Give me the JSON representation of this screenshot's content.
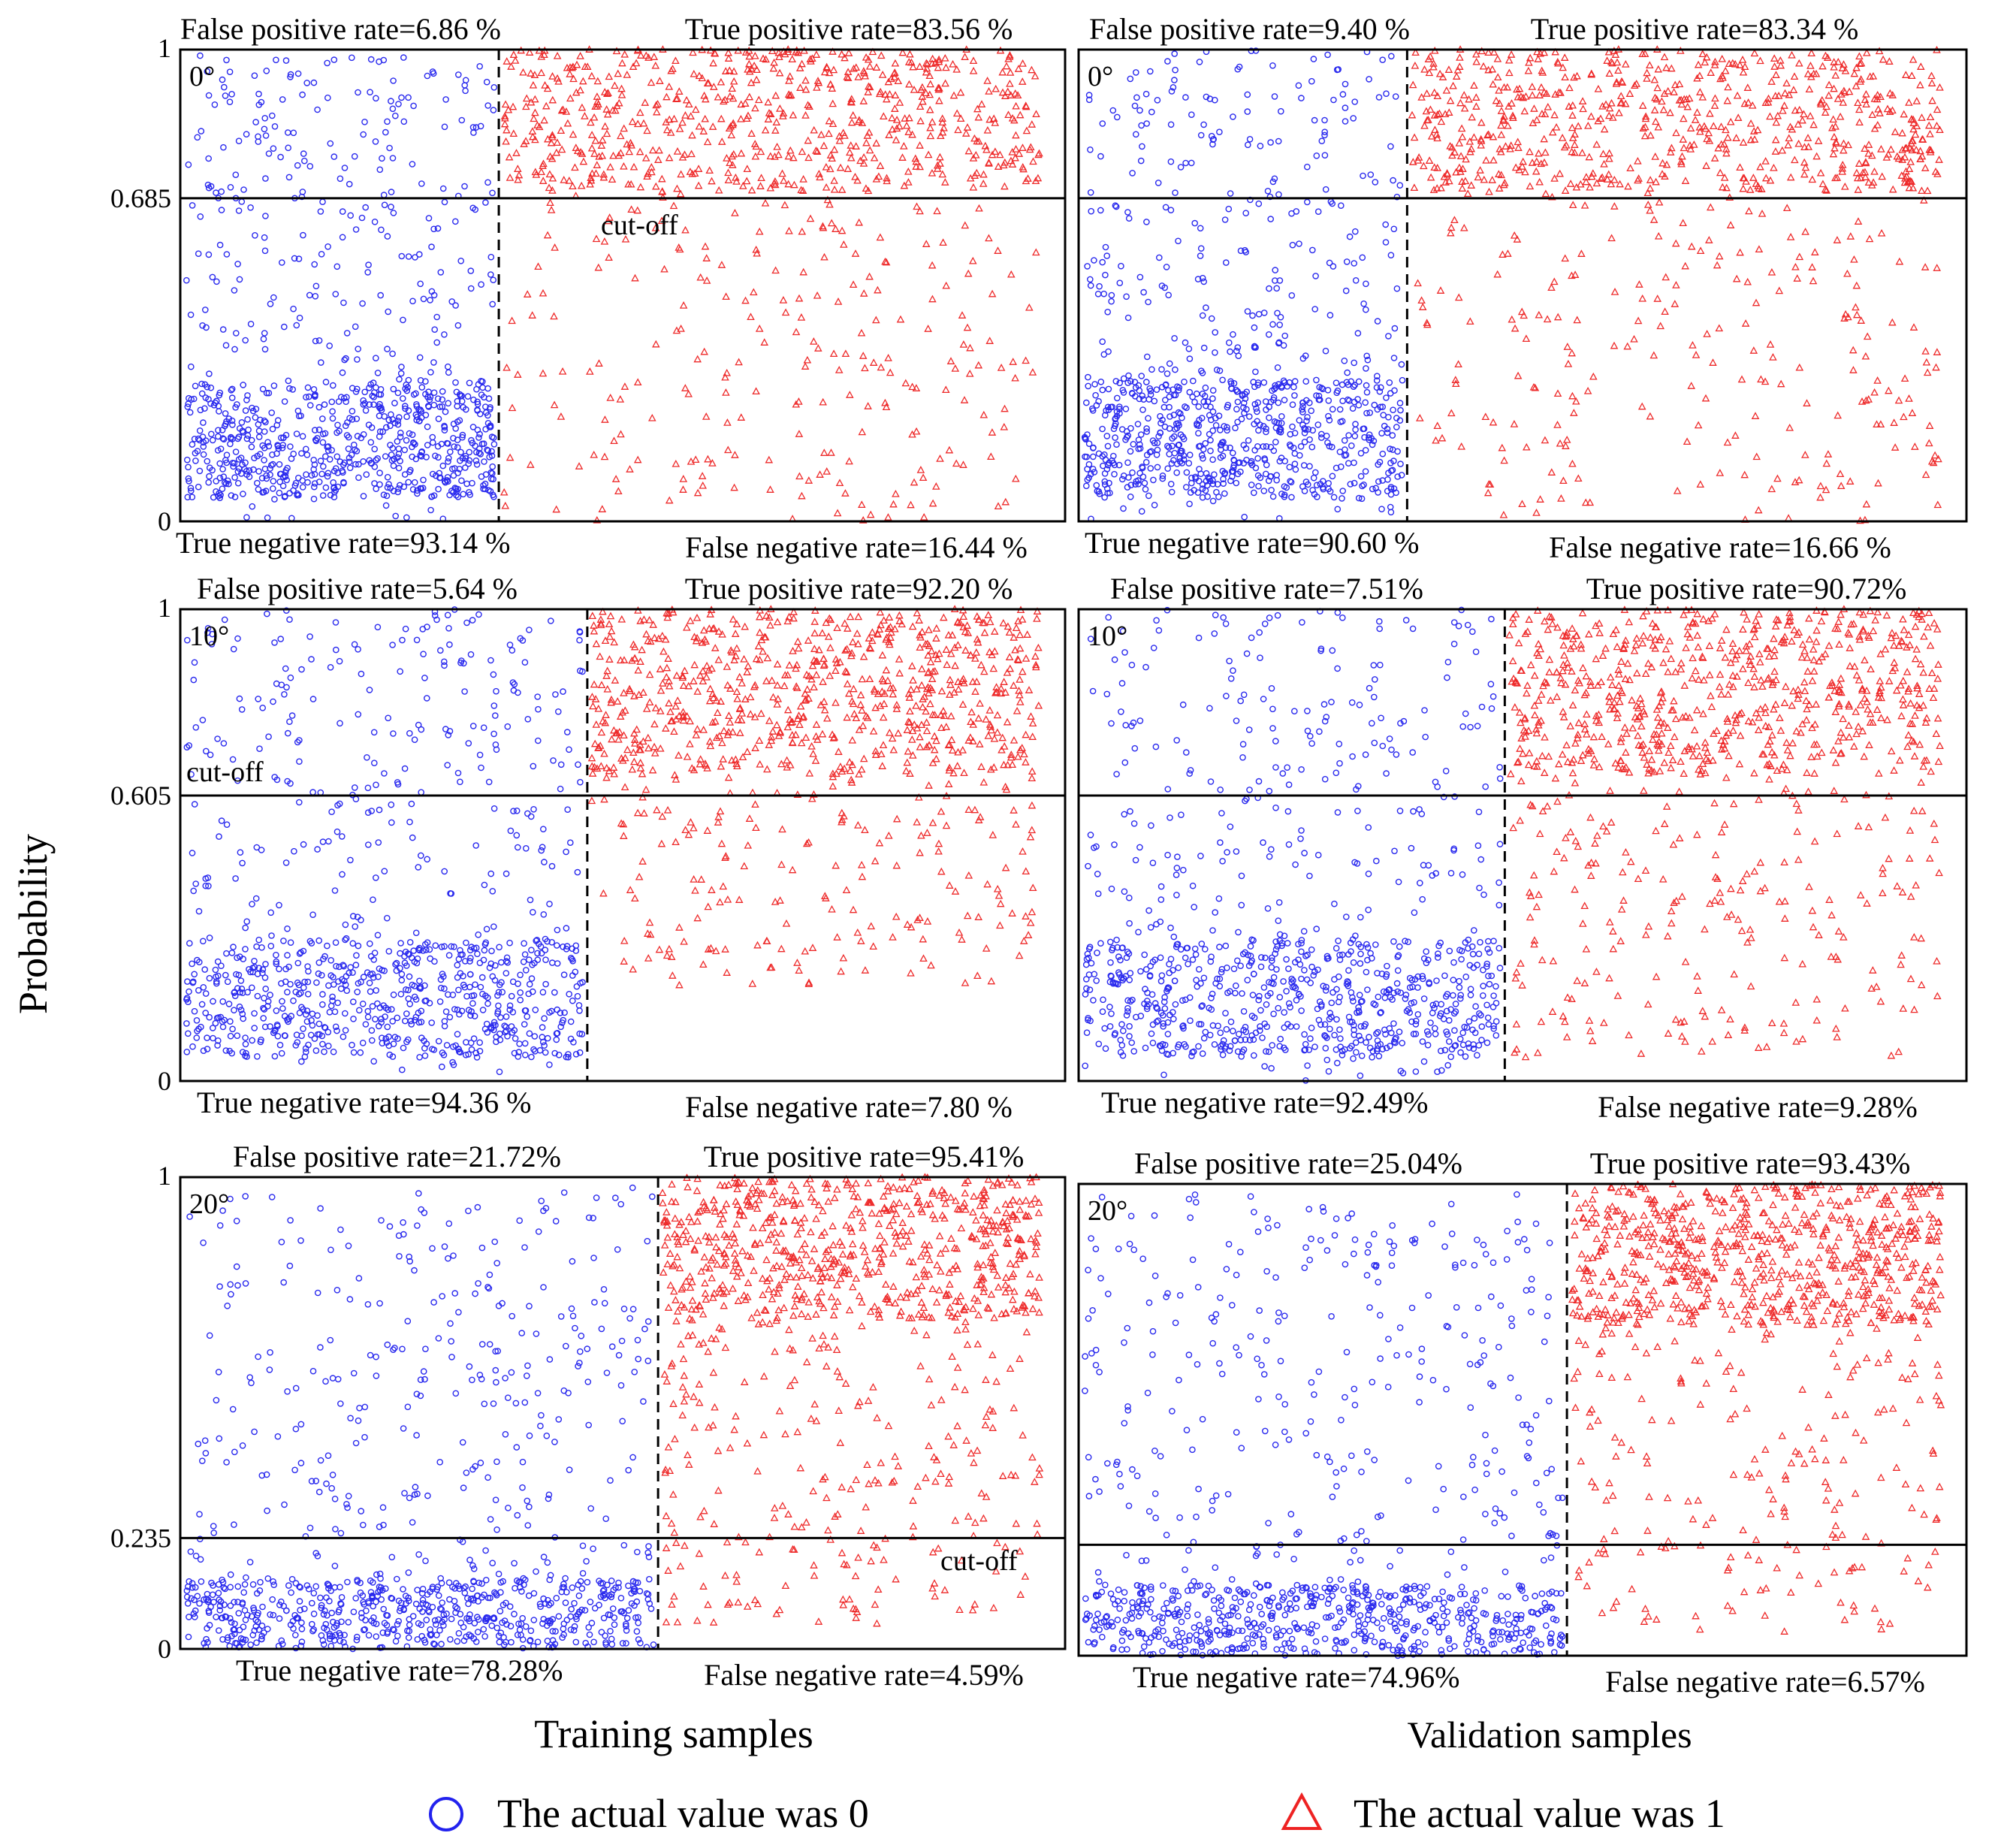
{
  "figure": {
    "ylabel": "Probability",
    "xlabel_training": "Training samples",
    "xlabel_validation": "Validation samples",
    "legend": [
      {
        "marker": "circle",
        "color": "#2222ee",
        "label": "The actual value was 0"
      },
      {
        "marker": "triangle",
        "color": "#ee2222",
        "label": "The actual value was 1"
      }
    ],
    "cutoff_label": "cut-off",
    "y_tick_min": "0",
    "y_tick_max": "1"
  },
  "chart_data": [
    {
      "type": "scatter",
      "angle": "0°",
      "set": "training",
      "cutoff": 0.685,
      "cutoff_tick": "0.685",
      "fpr": "False positive rate=6.86 %",
      "tpr": "True positive rate=83.56 %",
      "tnr": "True negative rate=93.14 %",
      "fnr": "False negative rate=16.44 %",
      "split_fraction": 0.36,
      "ylim": [
        0,
        1
      ],
      "class0": {
        "min": 0.0,
        "max": 1.0,
        "dense_low": 0.05,
        "dense_high": 0.3
      },
      "class1": {
        "min": 0.0,
        "max": 1.0,
        "dense_low": 0.7,
        "dense_high": 1.0
      }
    },
    {
      "type": "scatter",
      "angle": "0°",
      "set": "validation",
      "cutoff": 0.685,
      "cutoff_tick": "",
      "fpr": "False positive rate=9.40 %",
      "tpr": "True positive rate=83.34 %",
      "tnr": "True negative rate=90.60 %",
      "fnr": "False negative rate=16.66 %",
      "split_fraction": 0.37,
      "ylim": [
        0,
        1
      ],
      "class0": {
        "min": 0.0,
        "max": 1.0,
        "dense_low": 0.05,
        "dense_high": 0.3
      },
      "class1": {
        "min": 0.0,
        "max": 1.0,
        "dense_low": 0.7,
        "dense_high": 1.0
      }
    },
    {
      "type": "scatter",
      "angle": "10°",
      "set": "training",
      "cutoff": 0.605,
      "cutoff_tick": "0.605",
      "fpr": "False positive rate=5.64 %",
      "tpr": "True positive rate=92.20 %",
      "tnr": "True negative rate=94.36 %",
      "fnr": "False negative rate=7.80 %",
      "split_fraction": 0.46,
      "ylim": [
        0,
        1
      ],
      "class0": {
        "min": 0.0,
        "max": 1.0,
        "dense_low": 0.05,
        "dense_high": 0.3
      },
      "class1": {
        "min": 0.2,
        "max": 1.0,
        "dense_low": 0.65,
        "dense_high": 1.0
      }
    },
    {
      "type": "scatter",
      "angle": "10°",
      "set": "validation",
      "cutoff": 0.605,
      "cutoff_tick": "",
      "fpr": "False positive rate=7.51%",
      "tpr": "True positive rate=90.72%",
      "tnr": "True negative rate=92.49%",
      "fnr": "False negative rate=9.28%",
      "split_fraction": 0.48,
      "ylim": [
        0,
        1
      ],
      "class0": {
        "min": 0.0,
        "max": 1.0,
        "dense_low": 0.05,
        "dense_high": 0.3
      },
      "class1": {
        "min": 0.05,
        "max": 1.0,
        "dense_low": 0.65,
        "dense_high": 1.0
      }
    },
    {
      "type": "scatter",
      "angle": "20°",
      "set": "training",
      "cutoff": 0.235,
      "cutoff_tick": "0.235",
      "fpr": "False positive rate=21.72%",
      "tpr": "True positive rate=95.41%",
      "tnr": "True negative rate=78.28%",
      "fnr": "False negative rate=4.59%",
      "split_fraction": 0.54,
      "ylim": [
        0,
        1
      ],
      "class0": {
        "min": 0.0,
        "max": 0.98,
        "dense_low": 0.0,
        "dense_high": 0.15
      },
      "class1": {
        "min": 0.05,
        "max": 1.0,
        "dense_low": 0.7,
        "dense_high": 1.0
      }
    },
    {
      "type": "scatter",
      "angle": "20°",
      "set": "validation",
      "cutoff": 0.235,
      "cutoff_tick": "",
      "fpr": "False positive rate=25.04%",
      "tpr": "True positive rate=93.43%",
      "tnr": "True negative rate=74.96%",
      "fnr": "False negative rate=6.57%",
      "split_fraction": 0.55,
      "ylim": [
        0,
        1
      ],
      "class0": {
        "min": 0.0,
        "max": 0.98,
        "dense_low": 0.0,
        "dense_high": 0.15
      },
      "class1": {
        "min": 0.05,
        "max": 1.0,
        "dense_low": 0.7,
        "dense_high": 1.0
      }
    }
  ]
}
